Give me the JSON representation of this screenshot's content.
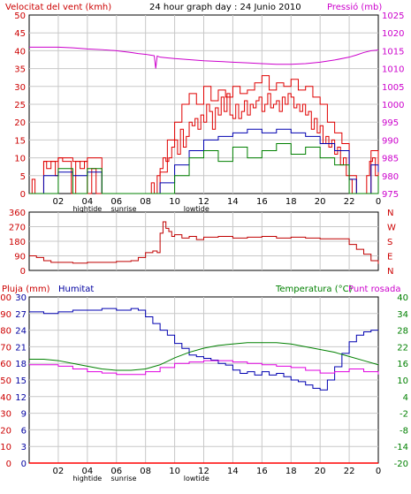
{
  "header": {
    "wind_label": "Velocitat del vent (kmh)",
    "title": "24 hour graph day : 24 Junio 2010",
    "pressure_label": "Pressió (mb)"
  },
  "colors": {
    "frame": "#000000",
    "grid": "#c8c8c8",
    "wind": "#e00000",
    "gust": "#e00000",
    "direction": "#c00000",
    "humidity": "#0000b0",
    "temperature": "#008000",
    "dewpoint": "#e000e0",
    "rain": "#ff0000",
    "pressure": "#cc00cc",
    "text_red": "#cc0000",
    "text_blue": "#0000a0",
    "text_green": "#008000"
  },
  "x_ticks": [
    "02",
    "04",
    "06",
    "08",
    "10",
    "12",
    "14",
    "16",
    "18",
    "20",
    "22",
    "0"
  ],
  "x_sublabels": {
    "hightide": "hightide",
    "sunrise": "sunrise",
    "lowtide": "lowtide"
  },
  "panel3_labels": {
    "rain": "Pluja (mm)",
    "humidity": "Humitat",
    "temperature": "Temperatura (°C)",
    "dewpoint": "Punt rosada"
  },
  "chart_data": [
    {
      "type": "line",
      "title": "24 hour graph day : 24 Junio 2010",
      "xlabel": "",
      "xlim": [
        0,
        24
      ],
      "y_left": {
        "label": "Velocitat del vent (kmh)",
        "lim": [
          0,
          50
        ],
        "ticks": [
          0,
          5,
          10,
          15,
          20,
          25,
          30,
          35,
          40,
          45,
          50
        ]
      },
      "y_right": {
        "label": "Pressió (mb)",
        "lim": [
          975,
          1025
        ],
        "ticks": [
          975,
          980,
          985,
          990,
          995,
          1000,
          1005,
          1010,
          1015,
          1020,
          1025
        ]
      },
      "series": [
        {
          "name": "Velocitat del vent",
          "axis": "left",
          "x": [
            0,
            0.2,
            0.4,
            0.6,
            0.8,
            1,
            1.2,
            1.5,
            1.8,
            2,
            2.3,
            2.6,
            2.9,
            3.2,
            3.5,
            3.8,
            4,
            4.3,
            4.6,
            4.9,
            5.2,
            5.5,
            5.8,
            6,
            6.3,
            6.6,
            6.9,
            7.2,
            7.5,
            7.8,
            8,
            8.2,
            8.4,
            8.6,
            8.8,
            9,
            9.2,
            9.4,
            9.6,
            9.8,
            10,
            10.2,
            10.4,
            10.6,
            10.8,
            11,
            11.2,
            11.4,
            11.6,
            11.8,
            12,
            12.2,
            12.4,
            12.6,
            12.8,
            13,
            13.2,
            13.4,
            13.6,
            13.8,
            14,
            14.2,
            14.4,
            14.6,
            14.8,
            15,
            15.2,
            15.4,
            15.6,
            15.8,
            16,
            16.2,
            16.4,
            16.6,
            16.8,
            17,
            17.2,
            17.4,
            17.6,
            17.8,
            18,
            18.2,
            18.4,
            18.6,
            18.8,
            19,
            19.2,
            19.4,
            19.6,
            19.8,
            20,
            20.2,
            20.4,
            20.6,
            20.8,
            21,
            21.2,
            21.4,
            21.6,
            21.8,
            22,
            22.2,
            22.4,
            22.6,
            22.8,
            23,
            23.2,
            23.4,
            23.6,
            23.8,
            24
          ],
          "values": [
            0,
            4,
            0,
            0,
            0,
            9,
            7,
            9,
            5,
            10,
            9,
            9,
            0,
            9,
            7,
            9,
            0,
            7,
            0,
            0,
            0,
            0,
            0,
            0,
            0,
            0,
            0,
            0,
            0,
            0,
            0,
            0,
            3,
            0,
            5,
            7,
            10,
            9,
            10,
            13,
            15,
            11,
            18,
            13,
            16,
            20,
            19,
            21,
            18,
            22,
            20,
            25,
            23,
            18,
            24,
            22,
            27,
            23,
            28,
            22,
            21,
            25,
            21,
            23,
            26,
            22,
            25,
            24,
            26,
            27,
            23,
            25,
            28,
            24,
            25,
            26,
            23,
            27,
            25,
            28,
            27,
            24,
            25,
            23,
            25,
            22,
            23,
            18,
            21,
            17,
            19,
            14,
            16,
            13,
            15,
            11,
            13,
            8,
            10,
            5,
            4,
            0,
            0,
            0,
            0,
            0,
            5,
            9,
            10,
            5,
            10
          ]
        },
        {
          "name": "Ràfega",
          "axis": "left",
          "x": [
            0,
            1,
            2,
            3,
            4,
            5,
            6,
            7,
            8,
            9,
            9.5,
            10,
            10.5,
            11,
            11.5,
            12,
            12.5,
            13,
            13.5,
            14,
            14.5,
            15,
            15.5,
            16,
            16.5,
            17,
            17.5,
            18,
            18.5,
            19,
            19.5,
            20,
            20.5,
            21,
            21.5,
            22,
            22.5,
            23,
            23.5,
            24
          ],
          "values": [
            0,
            9,
            10,
            9,
            10,
            0,
            0,
            0,
            0,
            6,
            15,
            20,
            25,
            28,
            25,
            30,
            26,
            29,
            27,
            30,
            28,
            29,
            31,
            33,
            29,
            31,
            30,
            32,
            29,
            30,
            27,
            25,
            20,
            17,
            14,
            5,
            0,
            0,
            12,
            8
          ]
        },
        {
          "name": "Pressió",
          "axis": "right",
          "x": [
            0,
            1,
            2,
            3,
            4,
            5,
            6,
            7,
            7.5,
            8,
            8.3,
            8.6,
            8.7,
            8.8,
            9,
            9.5,
            10,
            11,
            12,
            13,
            14,
            15,
            16,
            17,
            18,
            19,
            20,
            21,
            22,
            22.5,
            23,
            23.5,
            24
          ],
          "values": [
            1016,
            1016,
            1016,
            1015.8,
            1015.5,
            1015.3,
            1015,
            1014.5,
            1014.2,
            1014,
            1013.8,
            1013.6,
            1010,
            1013.5,
            1013.2,
            1013,
            1012.8,
            1012.5,
            1012.2,
            1012,
            1011.8,
            1011.6,
            1011.4,
            1011.2,
            1011.2,
            1011.4,
            1011.8,
            1012.4,
            1013.2,
            1013.8,
            1014.5,
            1015,
            1015.2
          ]
        },
        {
          "name": "Humitat (vent mitjà)",
          "axis": "left",
          "x": [
            0,
            1,
            2,
            3,
            4,
            5,
            6,
            7,
            8,
            9,
            10,
            11,
            12,
            13,
            14,
            15,
            16,
            17,
            18,
            19,
            20,
            21,
            22,
            22.5,
            23,
            23.5,
            24
          ],
          "values": [
            0,
            5,
            6,
            5,
            6,
            0,
            0,
            0,
            0,
            3,
            8,
            12,
            15,
            16,
            17,
            18,
            17,
            18,
            17,
            16,
            14,
            12,
            4,
            0,
            0,
            8,
            6
          ]
        },
        {
          "name": "Temperatura (vent min)",
          "axis": "left",
          "x": [
            0,
            1,
            2,
            3,
            4,
            5,
            6,
            7,
            8,
            9,
            10,
            11,
            12,
            13,
            14,
            15,
            16,
            17,
            18,
            19,
            20,
            21,
            22,
            23,
            24
          ],
          "values": [
            0,
            0,
            7,
            0,
            7,
            0,
            0,
            0,
            0,
            0,
            5,
            10,
            12,
            9,
            13,
            10,
            12,
            14,
            11,
            13,
            10,
            8,
            0,
            0,
            5
          ]
        }
      ]
    },
    {
      "type": "line",
      "title": "",
      "xlim": [
        0,
        24
      ],
      "y_left": {
        "label": "",
        "lim": [
          0,
          360
        ],
        "ticks": [
          0,
          90,
          180,
          270,
          360
        ]
      },
      "y_right": {
        "label": "",
        "ticks": [
          "N",
          "E",
          "S",
          "W",
          "N"
        ]
      },
      "series": [
        {
          "name": "Direcció",
          "x": [
            0,
            0.5,
            1,
            1.5,
            2,
            3,
            4,
            5,
            6,
            7,
            7.5,
            8,
            8.5,
            8.8,
            9,
            9.2,
            9.4,
            9.6,
            9.8,
            10,
            10.5,
            11,
            11.5,
            12,
            13,
            14,
            15,
            16,
            17,
            18,
            19,
            20,
            21,
            22,
            22.5,
            23,
            23.5,
            24
          ],
          "values": [
            90,
            80,
            60,
            50,
            50,
            45,
            50,
            50,
            55,
            60,
            80,
            110,
            120,
            110,
            230,
            300,
            260,
            240,
            210,
            220,
            200,
            210,
            190,
            205,
            210,
            200,
            205,
            210,
            200,
            205,
            200,
            195,
            195,
            160,
            130,
            100,
            60,
            40
          ]
        }
      ]
    },
    {
      "type": "line",
      "title": "",
      "xlim": [
        0,
        24
      ],
      "y_left_rain": {
        "label": "Pluja (mm)",
        "lim": [
          0,
          100
        ],
        "ticks": [
          0,
          10,
          20,
          30,
          40,
          50,
          60,
          70,
          80,
          90,
          100
        ]
      },
      "y_left_humidity": {
        "label": "Humitat",
        "lim": [
          0,
          30
        ],
        "ticks": [
          0,
          3,
          6,
          9,
          12,
          15,
          18,
          21,
          24,
          27,
          30
        ]
      },
      "y_right": {
        "label": "Temperatura (°C)",
        "lim": [
          -20,
          40
        ],
        "ticks": [
          -20,
          -14,
          -8,
          -2,
          4,
          10,
          16,
          22,
          28,
          34,
          40
        ]
      },
      "series": [
        {
          "name": "Humitat",
          "axis": "left",
          "x": [
            0,
            1,
            2,
            3,
            4,
            5,
            6,
            7,
            7.5,
            8,
            8.5,
            9,
            9.5,
            10,
            10.5,
            11,
            11.5,
            12,
            12.5,
            13,
            13.5,
            14,
            14.5,
            15,
            15.5,
            16,
            16.5,
            17,
            17.5,
            18,
            18.5,
            19,
            19.5,
            20,
            20.5,
            21,
            21.5,
            22,
            22.5,
            23,
            23.5,
            24
          ],
          "values": [
            91,
            90,
            91,
            92,
            92,
            93,
            92,
            93,
            92,
            88,
            84,
            80,
            77,
            72,
            69,
            65,
            64,
            63,
            62,
            60,
            59,
            56,
            54,
            55,
            53,
            55,
            53,
            54,
            52,
            50,
            49,
            47,
            45,
            44,
            50,
            58,
            66,
            73,
            77,
            79,
            80,
            80
          ]
        },
        {
          "name": "Temperatura (°C)",
          "axis": "right",
          "x": [
            0,
            1,
            2,
            3,
            4,
            5,
            6,
            7,
            8,
            9,
            10,
            11,
            12,
            13,
            14,
            15,
            16,
            17,
            18,
            19,
            20,
            21,
            22,
            23,
            24
          ],
          "values": [
            17.5,
            17.5,
            17,
            16,
            15,
            14,
            13.5,
            13.5,
            14,
            15.5,
            18,
            20,
            21.5,
            22.5,
            23,
            23.5,
            23.5,
            23.5,
            23,
            22,
            21,
            20,
            18.5,
            17,
            15.5
          ]
        },
        {
          "name": "Punt rosada",
          "axis": "right",
          "x": [
            0,
            1,
            2,
            3,
            4,
            5,
            6,
            7,
            8,
            9,
            10,
            11,
            12,
            13,
            14,
            15,
            16,
            17,
            18,
            19,
            20,
            21,
            22,
            23,
            24
          ],
          "values": [
            15.5,
            15.5,
            15,
            14,
            13,
            12.5,
            12,
            12,
            13,
            14.5,
            16,
            16.5,
            17,
            17,
            16.5,
            16,
            15.5,
            15,
            14.5,
            13.5,
            12.5,
            13,
            14,
            13,
            12
          ]
        },
        {
          "name": "Pluja (mm)",
          "axis": "left",
          "x": [
            0,
            24
          ],
          "values": [
            0,
            0
          ]
        }
      ]
    }
  ]
}
